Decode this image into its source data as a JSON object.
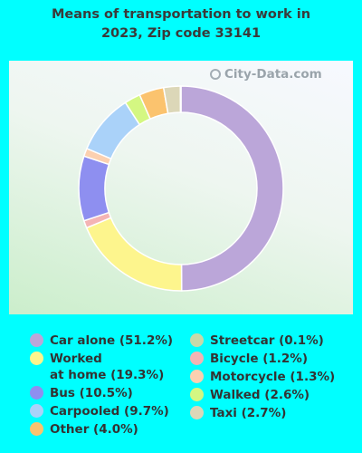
{
  "chart_data": {
    "type": "pie",
    "title": "Means of transportation to work in 2023, Zip code 33141",
    "watermark": "City-Data.com",
    "slices": [
      {
        "label": "Car alone",
        "value": 51.2,
        "color": "#bba6d9",
        "legend": "Car alone (51.2%)"
      },
      {
        "label": "Worked at home",
        "value": 19.3,
        "color": "#fdf58d",
        "legend": "Worked\nat home (19.3%)"
      },
      {
        "label": "Bicycle",
        "value": 1.2,
        "color": "#f4b4b4",
        "legend": "Bicycle (1.2%)"
      },
      {
        "label": "Bus",
        "value": 10.5,
        "color": "#8e8ff0",
        "legend": "Bus (10.5%)"
      },
      {
        "label": "Motorcycle",
        "value": 1.3,
        "color": "#fbd0b0",
        "legend": "Motorcycle (1.3%)"
      },
      {
        "label": "Carpooled",
        "value": 9.7,
        "color": "#aad2f9",
        "legend": "Carpooled (9.7%)"
      },
      {
        "label": "Walked",
        "value": 2.6,
        "color": "#d4f782",
        "legend": "Walked (2.6%)"
      },
      {
        "label": "Other",
        "value": 4.0,
        "color": "#fbc36e",
        "legend": "Other (4.0%)"
      },
      {
        "label": "Taxi",
        "value": 2.7,
        "color": "#dcd7b8",
        "legend": "Taxi (2.7%)"
      },
      {
        "label": "Streetcar",
        "value": 0.1,
        "color": "#c8d9a9",
        "legend": "Streetcar (0.1%)"
      }
    ],
    "legend_order_left": [
      "Car alone",
      "Worked at home",
      "Bus",
      "Carpooled",
      "Other"
    ],
    "legend_order_right": [
      "Streetcar",
      "Bicycle",
      "Motorcycle",
      "Walked",
      "Taxi"
    ]
  }
}
